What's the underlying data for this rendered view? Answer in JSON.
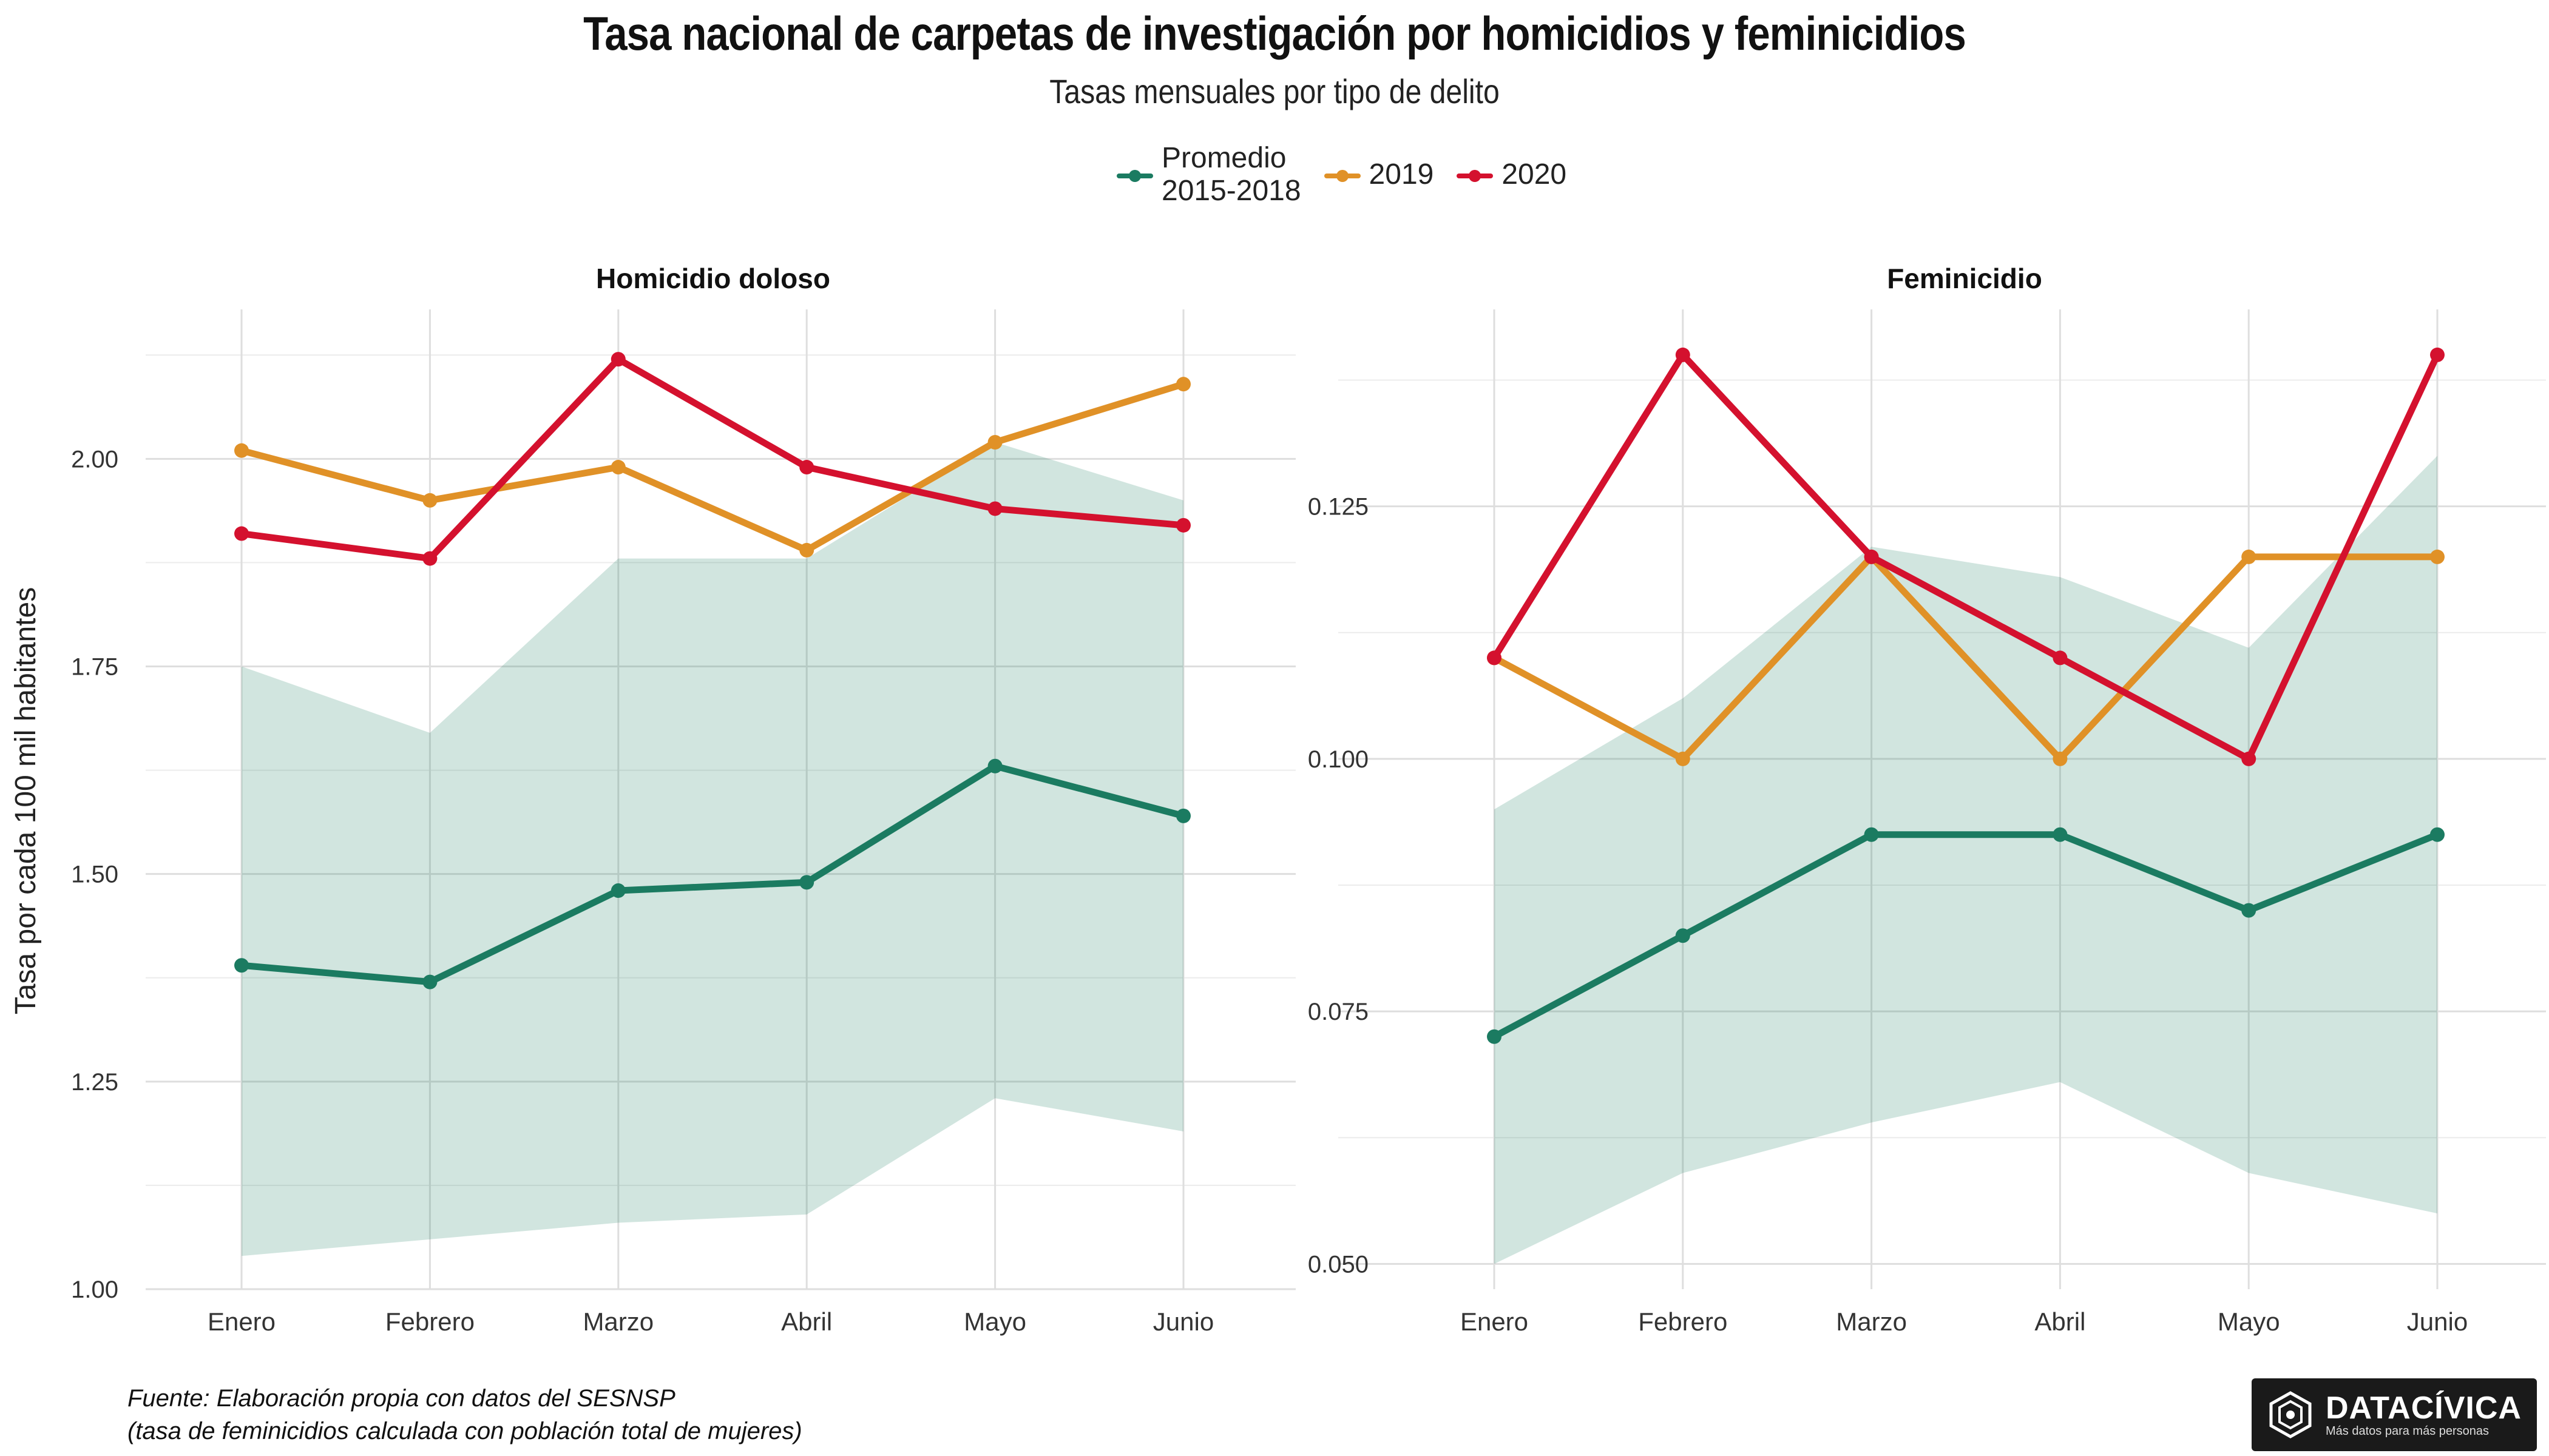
{
  "title": "Tasa nacional de carpetas de investigación por homicidios y feminicidios",
  "subtitle": "Tasas mensuales por tipo de delito",
  "legend": [
    {
      "label": "Promedio\n2015-2018",
      "color": "#1b7b61"
    },
    {
      "label": "2019",
      "color": "#e09127"
    },
    {
      "label": "2020",
      "color": "#d4112e"
    }
  ],
  "ylabel": "Tasa por cada 100 mil habitantes",
  "source_line1": "Fuente: Elaboración propia con datos del SESNSP",
  "source_line2": "(tasa de feminicidios calculada con población total de mujeres)",
  "logo": {
    "name": "DATACÍVICA",
    "tagline": "Más datos para más personas"
  },
  "chart_data": [
    {
      "type": "line",
      "title": "Homicidio doloso",
      "categories": [
        "Enero",
        "Febrero",
        "Marzo",
        "Abril",
        "Mayo",
        "Junio"
      ],
      "ylim": [
        1.0,
        2.18
      ],
      "yticks": [
        1.0,
        1.25,
        1.5,
        1.75,
        2.0
      ],
      "ytick_labels": [
        "1.00",
        "1.25",
        "1.50",
        "1.75",
        "2.00"
      ],
      "band": {
        "name": "Promedio\n2015-2018",
        "lower": [
          1.04,
          1.06,
          1.08,
          1.09,
          1.23,
          1.19
        ],
        "upper": [
          1.75,
          1.67,
          1.88,
          1.88,
          2.02,
          1.95
        ]
      },
      "series": [
        {
          "name": "Promedio\n2015-2018",
          "color": "#1b7b61",
          "values": [
            1.39,
            1.37,
            1.48,
            1.49,
            1.63,
            1.57
          ]
        },
        {
          "name": "2019",
          "color": "#e09127",
          "values": [
            2.01,
            1.95,
            1.99,
            1.89,
            2.02,
            2.09
          ]
        },
        {
          "name": "2020",
          "color": "#d4112e",
          "values": [
            1.91,
            1.88,
            2.12,
            1.99,
            1.94,
            1.92
          ]
        }
      ],
      "grid": true
    },
    {
      "type": "line",
      "title": "Feminicidio",
      "categories": [
        "Enero",
        "Febrero",
        "Marzo",
        "Abril",
        "Mayo",
        "Junio"
      ],
      "ylim": [
        0.0475,
        0.1445
      ],
      "yticks": [
        0.05,
        0.075,
        0.1,
        0.125
      ],
      "ytick_labels": [
        "0.050",
        "0.075",
        "0.100",
        "0.125"
      ],
      "band": {
        "name": "Promedio\n2015-2018",
        "lower": [
          0.05,
          0.059,
          0.064,
          0.068,
          0.059,
          0.055
        ],
        "upper": [
          0.095,
          0.106,
          0.121,
          0.118,
          0.111,
          0.13
        ]
      },
      "series": [
        {
          "name": "Promedio\n2015-2018",
          "color": "#1b7b61",
          "values": [
            0.0725,
            0.0825,
            0.0925,
            0.0925,
            0.085,
            0.0925
          ]
        },
        {
          "name": "2019",
          "color": "#e09127",
          "values": [
            0.11,
            0.1,
            0.12,
            0.1,
            0.12,
            0.12
          ]
        },
        {
          "name": "2020",
          "color": "#d4112e",
          "values": [
            0.11,
            0.14,
            0.12,
            0.11,
            0.1,
            0.14
          ]
        }
      ],
      "grid": true
    }
  ]
}
